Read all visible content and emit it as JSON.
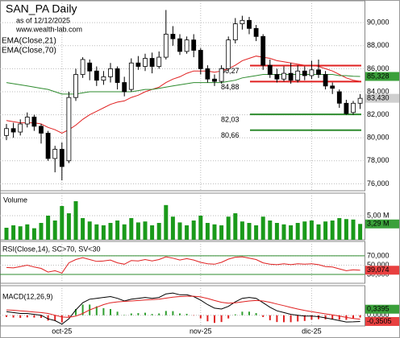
{
  "header": {
    "title": "SAN_PA Daily",
    "date": "as of 12/12/2025",
    "site": "www.wealth-lab.com"
  },
  "chart_data": [
    {
      "type": "candlestick",
      "categories": [
        null,
        null,
        null,
        null,
        null,
        null,
        null,
        null,
        "oct-25",
        null,
        null,
        null,
        null,
        null,
        null,
        null,
        null,
        null,
        null,
        null,
        null,
        null,
        null,
        null,
        null,
        null,
        null,
        null,
        "nov-25",
        null,
        null,
        null,
        null,
        null,
        null,
        null,
        null,
        null,
        null,
        null,
        null,
        null,
        null,
        null,
        "dic-25",
        null,
        null,
        null,
        null,
        null,
        null,
        null
      ],
      "open": [
        80.2,
        80.8,
        80.5,
        81.2,
        81.8,
        81.0,
        80.4,
        78.2,
        79.0,
        78.0,
        83.5,
        85.5,
        86.5,
        85.8,
        85.0,
        85.3,
        86.0,
        84.8,
        84.2,
        86.5,
        86.2,
        86.9,
        86.2,
        87.0,
        89.0,
        88.6,
        87.5,
        88.5,
        87.6,
        86.0,
        85.1,
        84.9,
        86.0,
        88.5,
        89.9,
        90.2,
        89.5,
        88.8,
        86.3,
        85.5,
        85.1,
        85.6,
        85.0,
        85.8,
        85.4,
        85.9,
        85.5,
        84.5,
        84.0,
        83.0,
        82.2,
        83.0
      ],
      "high": [
        81.2,
        81.3,
        81.6,
        82.2,
        82.0,
        81.2,
        80.6,
        79.3,
        79.6,
        84.0,
        86.0,
        87.0,
        86.8,
        86.2,
        85.8,
        86.5,
        86.2,
        85.3,
        86.9,
        87.1,
        87.3,
        87.4,
        87.5,
        91.1,
        89.7,
        89.0,
        88.8,
        89.0,
        87.8,
        86.3,
        85.5,
        86.3,
        88.8,
        90.4,
        90.6,
        90.5,
        89.8,
        89.0,
        86.8,
        86.0,
        86.2,
        86.5,
        86.3,
        86.2,
        86.7,
        86.8,
        85.8,
        84.8,
        84.2,
        83.3,
        83.2,
        83.8
      ],
      "low": [
        79.8,
        80.0,
        80.2,
        80.9,
        80.6,
        79.5,
        78.0,
        77.0,
        76.3,
        77.8,
        83.2,
        85.2,
        85.0,
        84.5,
        84.6,
        84.8,
        84.2,
        83.6,
        84.0,
        85.9,
        85.8,
        85.6,
        86.0,
        86.8,
        88.0,
        87.2,
        87.3,
        87.0,
        85.5,
        84.8,
        84.5,
        84.7,
        85.8,
        88.2,
        89.4,
        89.0,
        88.4,
        85.9,
        85.2,
        84.8,
        84.9,
        84.7,
        84.8,
        85.0,
        85.1,
        85.2,
        84.2,
        83.8,
        82.6,
        82.0,
        82.0,
        82.5
      ],
      "close": [
        80.8,
        80.5,
        81.2,
        81.8,
        81.0,
        80.4,
        78.2,
        79.0,
        77.5,
        83.5,
        85.5,
        86.8,
        85.8,
        85.0,
        85.3,
        86.0,
        84.8,
        84.0,
        86.5,
        86.2,
        86.9,
        86.2,
        87.0,
        89.0,
        88.6,
        87.5,
        88.5,
        87.6,
        86.0,
        85.1,
        84.9,
        86.0,
        88.5,
        89.9,
        90.2,
        89.5,
        88.8,
        86.3,
        85.5,
        85.1,
        85.6,
        85.0,
        85.8,
        85.4,
        85.9,
        85.5,
        84.5,
        84.3,
        83.0,
        82.1,
        83.0,
        83.43
      ],
      "series": [
        {
          "name": "EMA(Close,21)",
          "color": "#e02020",
          "values": [
            81.5,
            81.4,
            81.3,
            81.3,
            81.3,
            81.2,
            80.9,
            80.7,
            80.4,
            80.7,
            81.1,
            81.6,
            82.0,
            82.3,
            82.6,
            82.9,
            83.1,
            83.2,
            83.5,
            83.7,
            84.0,
            84.2,
            84.4,
            84.8,
            85.1,
            85.3,
            85.6,
            85.8,
            85.8,
            85.8,
            85.7,
            85.8,
            86.0,
            86.3,
            86.7,
            86.9,
            87.1,
            87.0,
            86.9,
            86.7,
            86.6,
            86.5,
            86.4,
            86.3,
            86.3,
            86.2,
            86.0,
            85.8,
            85.5,
            85.2,
            85.0,
            84.9
          ]
        },
        {
          "name": "EMA(Close,70)",
          "color": "#2e8b2e",
          "values": [
            84.8,
            84.7,
            84.6,
            84.5,
            84.4,
            84.3,
            84.2,
            84.0,
            83.8,
            83.8,
            83.8,
            83.9,
            84.0,
            84.0,
            84.0,
            84.0,
            84.0,
            84.0,
            84.0,
            84.1,
            84.2,
            84.2,
            84.3,
            84.4,
            84.5,
            84.6,
            84.7,
            84.8,
            84.8,
            84.8,
            84.8,
            84.8,
            84.9,
            85.0,
            85.2,
            85.3,
            85.4,
            85.5,
            85.5,
            85.5,
            85.5,
            85.5,
            85.5,
            85.5,
            85.5,
            85.5,
            85.5,
            85.5,
            85.4,
            85.4,
            85.35,
            85.328
          ]
        }
      ],
      "ylim": [
        75.4,
        91.9
      ],
      "yticks": [
        {
          "value": 76,
          "label": "76,000"
        },
        {
          "value": 78,
          "label": "78,000"
        },
        {
          "value": 80,
          "label": "80,000"
        },
        {
          "value": 82,
          "label": "82,000"
        },
        {
          "value": 84,
          "label": "84,000"
        },
        {
          "value": 86,
          "label": "86,000"
        },
        {
          "value": 88,
          "label": "88,000"
        },
        {
          "value": 90,
          "label": "90,000"
        }
      ],
      "levels": [
        {
          "value": 86.27,
          "label": "86,27",
          "color": "#e02020"
        },
        {
          "value": 84.88,
          "label": "84,88",
          "color": "#e02020"
        },
        {
          "value": 82.03,
          "label": "82,03",
          "color": "#2e8b2e"
        },
        {
          "value": 80.66,
          "label": "80,66",
          "color": "#2e8b2e"
        }
      ],
      "last_labels": [
        {
          "value": 85.328,
          "label": "85,328",
          "color": "#3aa03a"
        },
        {
          "value": 83.43,
          "label": "83,430",
          "color": "#cfcfcf"
        }
      ]
    },
    {
      "type": "bar",
      "title": "Volume",
      "color": "#1a9a1a",
      "values": [
        2.5,
        3.0,
        2.8,
        3.2,
        2.4,
        3.5,
        5.0,
        4.0,
        7.0,
        5.5,
        8.0,
        4.5,
        3.8,
        3.2,
        3.0,
        3.5,
        4.0,
        3.2,
        4.5,
        3.6,
        3.8,
        3.0,
        3.5,
        7.2,
        4.8,
        3.6,
        3.0,
        4.0,
        5.0,
        3.5,
        3.2,
        3.0,
        4.8,
        5.5,
        3.8,
        3.5,
        3.0,
        4.8,
        4.0,
        3.5,
        3.2,
        3.0,
        3.5,
        3.8,
        4.0,
        3.2,
        3.8,
        4.0,
        4.5,
        4.3,
        4.2,
        3.29
      ],
      "ylim": [
        0,
        9.67
      ],
      "yticks": [
        {
          "value": 5,
          "label": "5,00 M"
        }
      ],
      "last_labels": [
        {
          "value": 3.29,
          "label": "3,29 M",
          "color": "#3aa03a"
        }
      ]
    },
    {
      "type": "line",
      "title": "RSI(Close,14), SC>70, SV<30",
      "series": [
        {
          "color": "#e02020",
          "values": [
            45,
            44,
            47,
            50,
            46,
            43,
            35,
            38,
            33,
            55,
            62,
            66,
            62,
            58,
            59,
            61,
            55,
            52,
            60,
            59,
            62,
            59,
            62,
            68,
            65,
            61,
            64,
            61,
            56,
            53,
            52,
            56,
            63,
            67,
            68,
            65,
            62,
            55,
            52,
            51,
            53,
            51,
            53,
            52,
            53,
            51,
            47,
            46,
            42,
            38,
            40,
            39.074
          ]
        }
      ],
      "ylim": [
        11,
        101
      ],
      "yticks": [
        {
          "value": 30,
          "label": "30,000"
        },
        {
          "value": 50,
          "label": "50,000"
        },
        {
          "value": 70,
          "label": "70,000"
        }
      ],
      "levels": [
        {
          "value": 70,
          "color": "#2e8b2e"
        },
        {
          "value": 30,
          "color": "#2e8b2e"
        }
      ],
      "last_labels": [
        {
          "value": 39.074,
          "label": "39,074",
          "color": "#e84040"
        }
      ]
    },
    {
      "type": "macd",
      "title": "MACD(12,26,9)",
      "series": [
        {
          "color": "#000000",
          "values": [
            0.2,
            0.15,
            0.1,
            0.1,
            0.05,
            0,
            -0.2,
            -0.3,
            -0.5,
            -0.2,
            0.3,
            0.7,
            0.9,
            0.95,
            1.0,
            1.05,
            0.95,
            0.8,
            0.9,
            0.95,
            1.0,
            0.95,
            1.0,
            1.2,
            1.25,
            1.15,
            1.15,
            1.05,
            0.85,
            0.6,
            0.4,
            0.35,
            0.5,
            0.75,
            0.95,
            1.0,
            0.95,
            0.7,
            0.45,
            0.25,
            0.15,
            0.05,
            0.0,
            -0.05,
            -0.05,
            -0.08,
            -0.15,
            -0.22,
            -0.3,
            -0.38,
            -0.37,
            -0.3505
          ]
        },
        {
          "color": "#e02020",
          "values": [
            0.3,
            0.28,
            0.25,
            0.22,
            0.18,
            0.15,
            0.1,
            0.0,
            -0.1,
            -0.12,
            -0.05,
            0.1,
            0.3,
            0.45,
            0.6,
            0.7,
            0.75,
            0.78,
            0.8,
            0.83,
            0.86,
            0.88,
            0.9,
            0.96,
            1.02,
            1.05,
            1.07,
            1.07,
            1.03,
            0.94,
            0.83,
            0.73,
            0.68,
            0.7,
            0.75,
            0.8,
            0.83,
            0.8,
            0.73,
            0.63,
            0.54,
            0.44,
            0.35,
            0.27,
            0.2,
            0.14,
            0.08,
            0.02,
            -0.05,
            -0.12,
            -0.18,
            -0.22
          ]
        }
      ],
      "ylim": [
        -0.6,
        1.66
      ],
      "yticks": [
        {
          "value": 0,
          "label": "0,0000"
        }
      ],
      "last_labels": [
        {
          "value": 0.3395,
          "label": "0,3395",
          "color": "#3aa03a"
        },
        {
          "value": -0.3505,
          "label": "-0,3505",
          "color": "#e84040"
        }
      ]
    }
  ]
}
